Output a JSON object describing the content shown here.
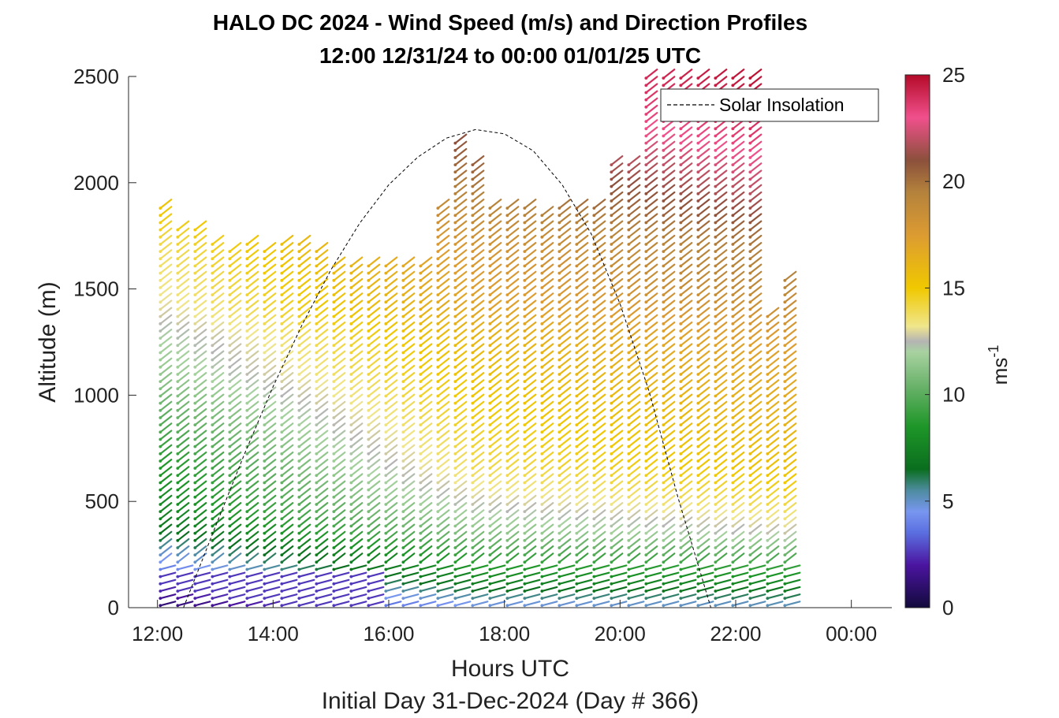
{
  "chart_data": {
    "type": "scatter",
    "title": "HALO DC 2024 - Wind Speed (m/s) and Direction Profiles",
    "subtitle": "12:00 12/31/24 to 00:00 01/01/25  UTC",
    "xlabel": "Hours UTC",
    "xlabel2": "Initial Day 31-Dec-2024 (Day # 366)",
    "ylabel": "Altitude (m)",
    "xlim": [
      11.5,
      24.7
    ],
    "ylim": [
      0,
      2500
    ],
    "xticks": [
      {
        "value": 12,
        "label": "12:00"
      },
      {
        "value": 14,
        "label": "14:00"
      },
      {
        "value": 16,
        "label": "16:00"
      },
      {
        "value": 18,
        "label": "18:00"
      },
      {
        "value": 20,
        "label": "20:00"
      },
      {
        "value": 22,
        "label": "22:00"
      },
      {
        "value": 24,
        "label": "00:00"
      }
    ],
    "yticks": [
      {
        "value": 0,
        "label": "0"
      },
      {
        "value": 500,
        "label": "500"
      },
      {
        "value": 1000,
        "label": "1000"
      },
      {
        "value": 1500,
        "label": "1500"
      },
      {
        "value": 2000,
        "label": "2000"
      },
      {
        "value": 2500,
        "label": "2500"
      }
    ],
    "colorbar": {
      "label": "ms",
      "label_sup": "-1",
      "range": [
        0,
        25
      ],
      "ticks": [
        {
          "value": 0,
          "label": "0"
        },
        {
          "value": 5,
          "label": "5"
        },
        {
          "value": 10,
          "label": "10"
        },
        {
          "value": 15,
          "label": "15"
        },
        {
          "value": 20,
          "label": "20"
        },
        {
          "value": 25,
          "label": "25"
        }
      ],
      "stops": [
        {
          "value": 0,
          "color": "#120a3c"
        },
        {
          "value": 2,
          "color": "#4b14a0"
        },
        {
          "value": 3.5,
          "color": "#5a6ee0"
        },
        {
          "value": 4.5,
          "color": "#7896f0"
        },
        {
          "value": 5.5,
          "color": "#4e8ca0"
        },
        {
          "value": 6.5,
          "color": "#0a6e1e"
        },
        {
          "value": 8.5,
          "color": "#1e9628"
        },
        {
          "value": 10.5,
          "color": "#6eb46e"
        },
        {
          "value": 12,
          "color": "#a8d2a0"
        },
        {
          "value": 12.5,
          "color": "#b4b4b4"
        },
        {
          "value": 13.2,
          "color": "#f0e68c"
        },
        {
          "value": 15,
          "color": "#f0c800"
        },
        {
          "value": 17.5,
          "color": "#dc9b32"
        },
        {
          "value": 19.5,
          "color": "#b4823c"
        },
        {
          "value": 21,
          "color": "#8c503c"
        },
        {
          "value": 23,
          "color": "#f0508c"
        },
        {
          "value": 25,
          "color": "#b40a28"
        }
      ]
    },
    "series": [
      {
        "name": "Solar Insolation",
        "type": "line",
        "style": "dashed",
        "color": "#000000",
        "x": [
          12.45,
          13.0,
          13.5,
          14.0,
          14.5,
          15.0,
          15.5,
          16.0,
          16.5,
          17.0,
          17.5,
          18.0,
          18.5,
          19.0,
          19.5,
          20.0,
          20.5,
          21.0,
          21.57
        ],
        "y": [
          0,
          380,
          720,
          1040,
          1330,
          1590,
          1810,
          1990,
          2120,
          2210,
          2250,
          2230,
          2150,
          1990,
          1760,
          1430,
          1020,
          520,
          0
        ]
      },
      {
        "name": "wind_profiles",
        "type": "barbs",
        "profile_times": [
          12.05,
          12.35,
          12.65,
          12.95,
          13.25,
          13.55,
          13.85,
          14.15,
          14.45,
          14.75,
          15.05,
          15.35,
          15.65,
          15.95,
          16.25,
          16.55,
          16.85,
          17.15,
          17.45,
          17.75,
          18.05,
          18.35,
          18.65,
          18.95,
          19.25,
          19.55,
          19.85,
          20.15,
          20.45,
          20.75,
          21.05,
          21.35,
          21.65,
          21.95,
          22.25,
          22.55,
          22.85
        ],
        "profile_tops": [
          1880,
          1800,
          1800,
          1740,
          1690,
          1720,
          1700,
          1710,
          1710,
          1680,
          1620,
          1620,
          1620,
          1620,
          1620,
          1620,
          1900,
          2200,
          2100,
          1880,
          1880,
          1880,
          1860,
          1880,
          1880,
          1900,
          2100,
          2100,
          2520,
          2520,
          2520,
          2520,
          2520,
          2520,
          2520,
          1380,
          1540
        ],
        "speed_profile": {
          "altitude": [
            0,
            60,
            120,
            180,
            250,
            330,
            420,
            520,
            650,
            800,
            950,
            1100,
            1250,
            1400,
            1550,
            1700,
            1850,
            2000,
            2150,
            2300,
            2500
          ],
          "speed_early": [
            1.0,
            2.0,
            3.0,
            4.0,
            5.0,
            6.5,
            7.5,
            8.0,
            8.5,
            9.5,
            10.5,
            11.5,
            12.0,
            13.0,
            13.5,
            14.0,
            15.0,
            16.0,
            17.0,
            18.0,
            19.0
          ],
          "speed_mid": [
            4.5,
            6.0,
            7.5,
            8.5,
            9.5,
            11.0,
            12.0,
            13.0,
            14.0,
            14.5,
            15.0,
            15.5,
            16.0,
            17.0,
            17.5,
            18.0,
            19.0,
            20.0,
            21.0,
            22.0,
            23.0
          ],
          "speed_late": [
            5.0,
            6.5,
            8.0,
            9.0,
            10.5,
            12.5,
            13.5,
            14.5,
            15.5,
            16.0,
            16.5,
            17.0,
            17.5,
            18.5,
            19.5,
            20.0,
            21.5,
            22.5,
            23.5,
            24.5,
            25.0
          ]
        }
      }
    ],
    "legend": {
      "position": "top-right",
      "entries": [
        "Solar Insolation"
      ]
    },
    "grid": false
  }
}
